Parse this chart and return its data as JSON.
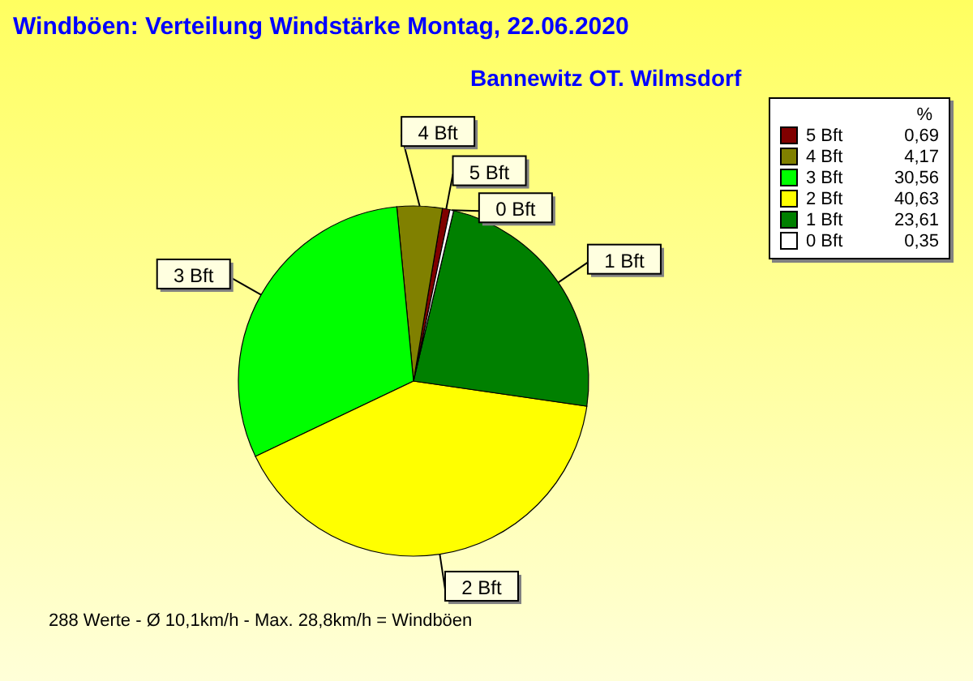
{
  "chart_data": {
    "type": "pie",
    "title": "Windböen: Verteilung Windstärke  Montag, 22.06.2020",
    "subtitle": "Bannewitz OT. Wilmsdorf",
    "categories": [
      "5 Bft",
      "4 Bft",
      "3 Bft",
      "2 Bft",
      "1 Bft",
      "0 Bft"
    ],
    "values": [
      0.69,
      4.17,
      30.56,
      40.63,
      23.61,
      0.35
    ],
    "value_labels": [
      "0,69",
      "4,17",
      "30,56",
      "40,63",
      "23,61",
      "0,35"
    ],
    "colors": [
      "#800000",
      "#808000",
      "#00ff00",
      "#ffff00",
      "#008000",
      "#ffffff"
    ],
    "legend": "top right",
    "legend_title": "%",
    "annotations": [
      "288 Werte   -   Ø 10,1km/h   -   Max. 28,8km/h = Windböen"
    ]
  }
}
